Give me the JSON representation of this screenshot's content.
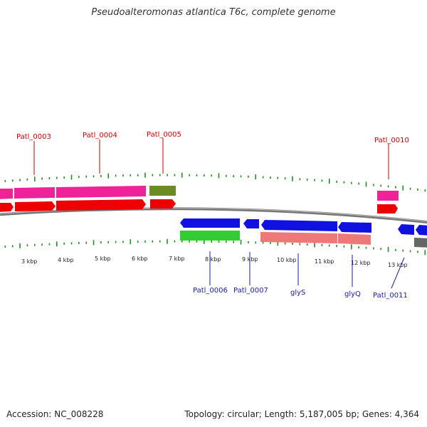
{
  "title": "Pseudoalteromonas atlantica T6c, complete genome",
  "footer": {
    "accession": "Accession: NC_008228",
    "summary": "Topology: circular; Length: 5,187,005 bp; Genes: 4,364"
  },
  "colors": {
    "forward_cds": "#ee0000",
    "forward_gene": "#ee2299",
    "forward_rna": "#6b8c23",
    "reverse_cds": "#1010e0",
    "reverse_gene": "#33cc33",
    "reverse_gene_alt": "#ee7777",
    "tick": "#228b22",
    "backbone": "#888888",
    "forward_label": "#cc0000",
    "reverse_label": "#1a1aa0"
  },
  "kbp_labels": [
    "3 kbp",
    "4 kbp",
    "5 kbp",
    "6 kbp",
    "7 kbp",
    "8 kbp",
    "9 kbp",
    "10 kbp",
    "11 kbp",
    "12 kbp",
    "13 kbp"
  ],
  "forward_labels": [
    "Patl_0003",
    "Patl_0004",
    "Patl_0005",
    "Patl_0010"
  ],
  "reverse_labels": [
    "Patl_0006",
    "Patl_0007",
    "glyS",
    "glyQ",
    "Patl_0011"
  ]
}
